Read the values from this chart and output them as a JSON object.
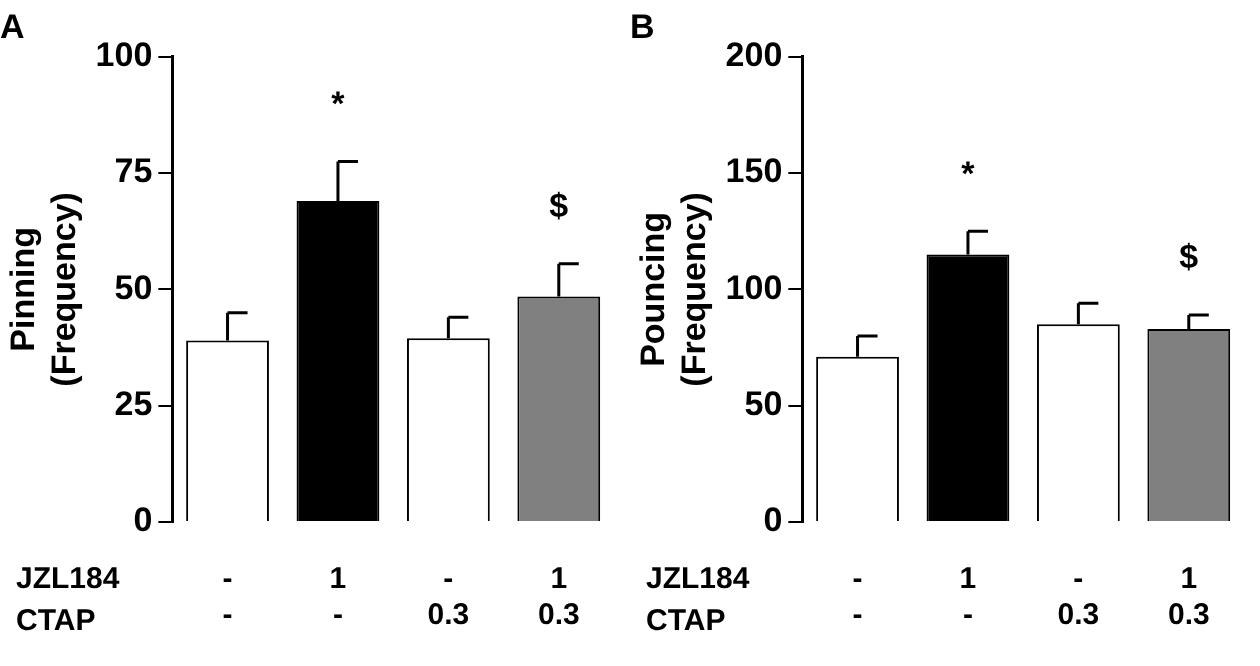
{
  "chart_data": [
    {
      "type": "bar",
      "title": "A",
      "ylabel": "Pinning\n(Frequency)",
      "categories": [
        "-\n-",
        "1\n-",
        "-\n0.3",
        "1\n0.3"
      ],
      "values": [
        39,
        69,
        39.5,
        48.5
      ],
      "errors": [
        [
          39,
          45
        ],
        [
          69,
          77.5
        ],
        [
          39.5,
          44
        ],
        [
          48.5,
          55.5
        ]
      ],
      "colors": [
        "#ffffff",
        "#000000",
        "#ffffff",
        "#808080"
      ],
      "ylim": [
        0,
        100
      ],
      "yticks": [
        0,
        25,
        50,
        75,
        100
      ],
      "grid": false,
      "legend": false,
      "annotations": [
        {
          "text": "*",
          "x": "1\n-",
          "y": 77.5
        },
        {
          "text": "$",
          "x": "1\n0.3",
          "y": 55.5
        },
        "JZL184",
        "CTAP"
      ]
    },
    {
      "type": "bar",
      "title": "B",
      "ylabel": "Pouncing\n(Frequency)",
      "categories": [
        "-\n-",
        "1\n-",
        "-\n0.3",
        "1\n0.3"
      ],
      "values": [
        71,
        115,
        85,
        83
      ],
      "errors": [
        [
          71,
          80
        ],
        [
          115,
          125
        ],
        [
          85,
          94
        ],
        [
          83,
          89
        ]
      ],
      "colors": [
        "#ffffff",
        "#000000",
        "#ffffff",
        "#808080"
      ],
      "ylim": [
        0,
        200
      ],
      "yticks": [
        0,
        50,
        100,
        150,
        200
      ],
      "grid": false,
      "legend": false,
      "annotations": [
        {
          "text": "*",
          "x": "1\n-",
          "y": 125
        },
        {
          "text": "$",
          "x": "1\n0.3",
          "y": 89
        },
        "JZL184",
        "CTAP"
      ]
    }
  ]
}
